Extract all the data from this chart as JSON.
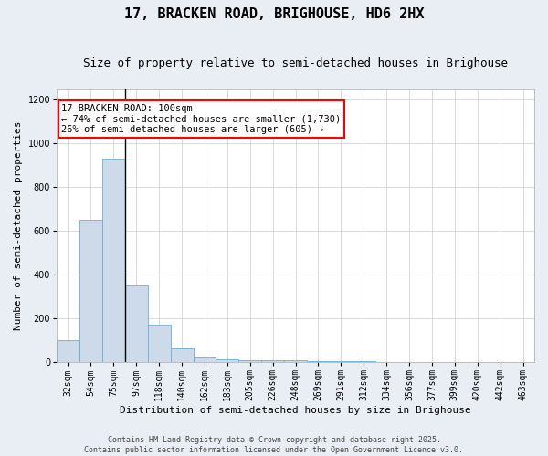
{
  "title": "17, BRACKEN ROAD, BRIGHOUSE, HD6 2HX",
  "subtitle": "Size of property relative to semi-detached houses in Brighouse",
  "xlabel": "Distribution of semi-detached houses by size in Brighouse",
  "ylabel": "Number of semi-detached properties",
  "categories": [
    "32sqm",
    "54sqm",
    "75sqm",
    "97sqm",
    "118sqm",
    "140sqm",
    "162sqm",
    "183sqm",
    "205sqm",
    "226sqm",
    "248sqm",
    "269sqm",
    "291sqm",
    "312sqm",
    "334sqm",
    "356sqm",
    "377sqm",
    "399sqm",
    "420sqm",
    "442sqm",
    "463sqm"
  ],
  "values": [
    100,
    650,
    930,
    350,
    170,
    65,
    25,
    15,
    10,
    10,
    8,
    4,
    4,
    4,
    2,
    1,
    1,
    1,
    1,
    1,
    1
  ],
  "bar_color": "#ccdaea",
  "bar_edge_color": "#6baed6",
  "property_bar_index": 2,
  "annotation_title": "17 BRACKEN ROAD: 100sqm",
  "annotation_line1": "← 74% of semi-detached houses are smaller (1,730)",
  "annotation_line2": "26% of semi-detached houses are larger (605) →",
  "ylim": [
    0,
    1250
  ],
  "yticks": [
    0,
    200,
    400,
    600,
    800,
    1000,
    1200
  ],
  "footer_line1": "Contains HM Land Registry data © Crown copyright and database right 2025.",
  "footer_line2": "Contains public sector information licensed under the Open Government Licence v3.0.",
  "bg_color": "#e8eef4",
  "plot_bg_color": "#ffffff",
  "title_fontsize": 11,
  "subtitle_fontsize": 9,
  "annotation_fontsize": 7.5,
  "axis_label_fontsize": 8,
  "tick_fontsize": 7,
  "footer_fontsize": 6
}
